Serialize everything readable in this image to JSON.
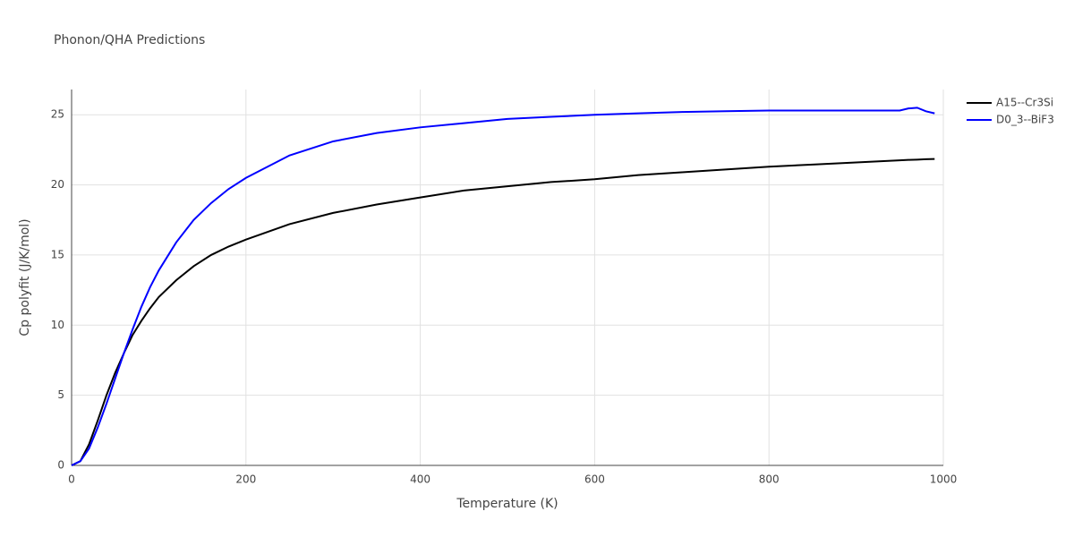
{
  "chart_data": {
    "type": "line",
    "title": "Phonon/QHA Predictions",
    "x_label": "Temperature (K)",
    "y_label": "Cp polyfit (J/K/mol)",
    "x": [
      0,
      10,
      20,
      30,
      40,
      50,
      60,
      70,
      80,
      90,
      100,
      120,
      140,
      160,
      180,
      200,
      250,
      300,
      350,
      400,
      450,
      500,
      550,
      600,
      650,
      700,
      750,
      800,
      850,
      900,
      950,
      960,
      970,
      980,
      990
    ],
    "series": [
      {
        "name": "A15--Cr3Si",
        "color": "#000000",
        "values": [
          0,
          0.3,
          1.5,
          3.2,
          5.0,
          6.6,
          8.0,
          9.3,
          10.3,
          11.2,
          12.0,
          13.2,
          14.2,
          15.0,
          15.6,
          16.1,
          17.2,
          18.0,
          18.6,
          19.1,
          19.6,
          19.9,
          20.2,
          20.4,
          20.7,
          20.9,
          21.1,
          21.3,
          21.45,
          21.6,
          21.75,
          21.78,
          21.8,
          21.83,
          21.85
        ]
      },
      {
        "name": "D0_3--BiF3",
        "color": "#0000ff",
        "values": [
          0,
          0.3,
          1.2,
          2.7,
          4.4,
          6.2,
          8.0,
          9.7,
          11.3,
          12.7,
          13.9,
          15.9,
          17.5,
          18.7,
          19.7,
          20.5,
          22.1,
          23.1,
          23.7,
          24.1,
          24.4,
          24.7,
          24.85,
          25.0,
          25.1,
          25.2,
          25.25,
          25.3,
          25.3,
          25.3,
          25.3,
          25.45,
          25.5,
          25.25,
          25.1
        ]
      }
    ],
    "xlim": [
      0,
      1000
    ],
    "xticks": [
      0,
      200,
      400,
      600,
      800,
      1000
    ],
    "ylim": [
      0,
      26.8
    ],
    "yticks": [
      0,
      5,
      10,
      15,
      20,
      25
    ],
    "grid": true
  }
}
